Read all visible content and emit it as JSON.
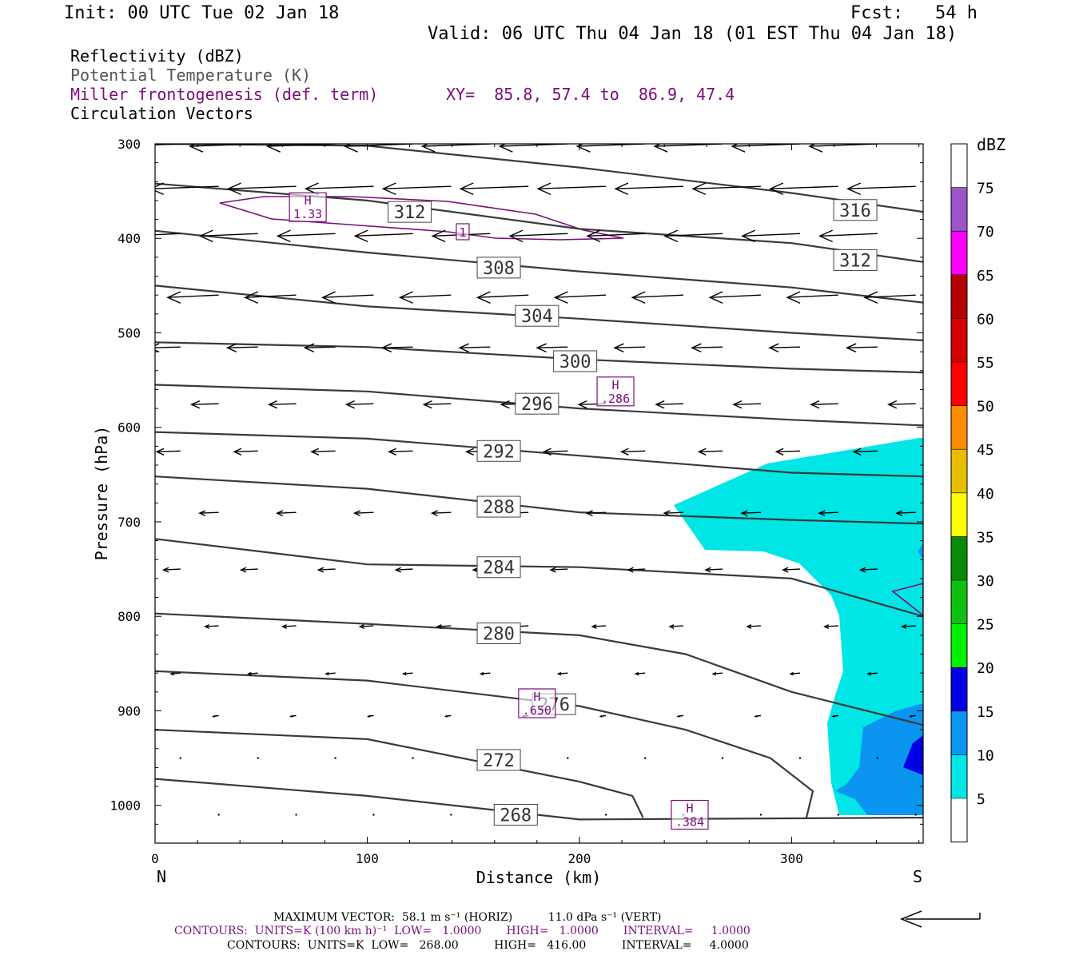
{
  "header": {
    "init": "Init: 00 UTC Tue 02 Jan 18",
    "fcst": "Fcst:   54 h",
    "valid": "Valid: 06 UTC Thu 04 Jan 18 (01 EST Thu 04 Jan 18)"
  },
  "legend_lines": {
    "reflectivity": "Reflectivity (dBZ)",
    "theta": "Potential Temperature (K)",
    "frontogenesis": "Miller frontogenesis (def. term)",
    "xy": "XY=  85.8, 57.4 to  86.9, 47.4",
    "vectors": "Circulation Vectors"
  },
  "footer": {
    "max_vector": "MAXIMUM VECTOR:  58.1 m s⁻¹ (HORIZ)          11.0 dPa s⁻¹ (VERT)",
    "contours_fronto": "CONTOURS:  UNITS=K (100 km h)⁻¹  LOW=   1.0000       HIGH=   1.0000       INTERVAL=     1.0000",
    "contours_theta": "CONTOURS:  UNITS=K  LOW=   268.00          HIGH=   416.00          INTERVAL=     4.0000"
  },
  "colors": {
    "theta": "#3a3a3a",
    "fronto": "#7b0d7b",
    "vector": "#000000"
  },
  "colorbar": {
    "unit": "dBZ",
    "labels": [
      "5",
      "10",
      "15",
      "20",
      "25",
      "30",
      "35",
      "40",
      "45",
      "50",
      "55",
      "60",
      "65",
      "70",
      "75"
    ],
    "colors": [
      "#ffffff",
      "#00e5e5",
      "#0a96f0",
      "#0000e6",
      "#00f000",
      "#10c010",
      "#0a8a0a",
      "#ffff00",
      "#e6be00",
      "#ff8c00",
      "#ff0000",
      "#d20000",
      "#b40000",
      "#ff00ff",
      "#9a56c8",
      "#ffffff"
    ]
  },
  "chart_data": {
    "type": "cross-section",
    "title": "",
    "xlabel": "Distance (km)",
    "ylabel": "Pressure (hPa)",
    "xlim": [
      0,
      362
    ],
    "ylim": [
      300,
      1040
    ],
    "x_ticks": [
      0,
      100,
      200,
      300
    ],
    "y_ticks": [
      300,
      400,
      500,
      600,
      700,
      800,
      900,
      1000
    ],
    "x_end_labels": {
      "left": "N",
      "right": "S"
    },
    "reflectivity_fill_levels_dbz": [
      5,
      10,
      15
    ],
    "theta_contours": [
      {
        "label": "316",
        "label_at": [
          330,
          370
        ],
        "points": [
          [
            0,
            300
          ],
          [
            100,
            302
          ],
          [
            200,
            325
          ],
          [
            300,
            352
          ],
          [
            362,
            372
          ]
        ]
      },
      {
        "label": "312",
        "label_at": [
          120,
          372
        ],
        "points": [
          [
            0,
            342
          ],
          [
            100,
            360
          ],
          [
            200,
            390
          ],
          [
            300,
            405
          ],
          [
            362,
            425
          ]
        ]
      },
      {
        "label": "312",
        "label_at": [
          330,
          423
        ],
        "points": [
          [
            0,
            342
          ],
          [
            100,
            360
          ],
          [
            200,
            390
          ],
          [
            300,
            405
          ],
          [
            362,
            425
          ]
        ]
      },
      {
        "label": "308",
        "label_at": [
          162,
          431
        ],
        "points": [
          [
            0,
            392
          ],
          [
            100,
            415
          ],
          [
            200,
            435
          ],
          [
            300,
            452
          ],
          [
            362,
            468
          ]
        ]
      },
      {
        "label": "304",
        "label_at": [
          180,
          482
        ],
        "points": [
          [
            0,
            450
          ],
          [
            100,
            472
          ],
          [
            200,
            485
          ],
          [
            300,
            500
          ],
          [
            362,
            508
          ]
        ]
      },
      {
        "label": "300",
        "label_at": [
          198,
          530
        ],
        "points": [
          [
            0,
            510
          ],
          [
            100,
            515
          ],
          [
            200,
            528
          ],
          [
            300,
            538
          ],
          [
            362,
            542
          ]
        ]
      },
      {
        "label": "296",
        "label_at": [
          180,
          575
        ],
        "points": [
          [
            0,
            555
          ],
          [
            100,
            562
          ],
          [
            200,
            580
          ],
          [
            300,
            592
          ],
          [
            362,
            598
          ]
        ]
      },
      {
        "label": "292",
        "label_at": [
          162,
          625
        ],
        "points": [
          [
            0,
            605
          ],
          [
            100,
            612
          ],
          [
            200,
            630
          ],
          [
            300,
            648
          ],
          [
            362,
            652
          ]
        ]
      },
      {
        "label": "288",
        "label_at": [
          162,
          684
        ],
        "points": [
          [
            0,
            652
          ],
          [
            100,
            665
          ],
          [
            200,
            690
          ],
          [
            300,
            698
          ],
          [
            362,
            702
          ]
        ]
      },
      {
        "label": "284",
        "label_at": [
          162,
          748
        ],
        "points": [
          [
            0,
            718
          ],
          [
            100,
            745
          ],
          [
            200,
            748
          ],
          [
            300,
            760
          ],
          [
            362,
            800
          ]
        ]
      },
      {
        "label": "280",
        "label_at": [
          162,
          818
        ],
        "points": [
          [
            0,
            797
          ],
          [
            100,
            808
          ],
          [
            200,
            820
          ],
          [
            250,
            840
          ],
          [
            300,
            880
          ],
          [
            362,
            915
          ]
        ]
      },
      {
        "label": "276",
        "label_at": [
          188,
          893
        ],
        "points": [
          [
            0,
            858
          ],
          [
            100,
            868
          ],
          [
            200,
            895
          ],
          [
            250,
            920
          ],
          [
            290,
            950
          ],
          [
            310,
            985
          ],
          [
            307,
            1013
          ]
        ]
      },
      {
        "label": "272",
        "label_at": [
          162,
          952
        ],
        "points": [
          [
            0,
            920
          ],
          [
            100,
            930
          ],
          [
            200,
            975
          ],
          [
            225,
            990
          ],
          [
            230,
            1013
          ]
        ]
      },
      {
        "label": "268",
        "label_at": [
          170,
          1010
        ],
        "points": [
          [
            0,
            972
          ],
          [
            100,
            990
          ],
          [
            200,
            1015
          ],
          [
            362,
            1013
          ]
        ]
      }
    ],
    "frontogenesis_maxima": [
      {
        "label": "H",
        "value": "1.33",
        "at": [
          72,
          367
        ]
      },
      {
        "label": "1",
        "value": "",
        "at": [
          145,
          393
        ]
      },
      {
        "label": "H",
        "value": ".286",
        "at": [
          217,
          562
        ]
      },
      {
        "label": "H",
        "value": ".650",
        "at": [
          180,
          892
        ]
      },
      {
        "label": "H",
        "value": ".384",
        "at": [
          252,
          1010
        ]
      }
    ],
    "frontogenesis_contour_value": 1.0,
    "vectors_note": "Circulation vectors: northward (leftward) flow, strongest aloft"
  }
}
